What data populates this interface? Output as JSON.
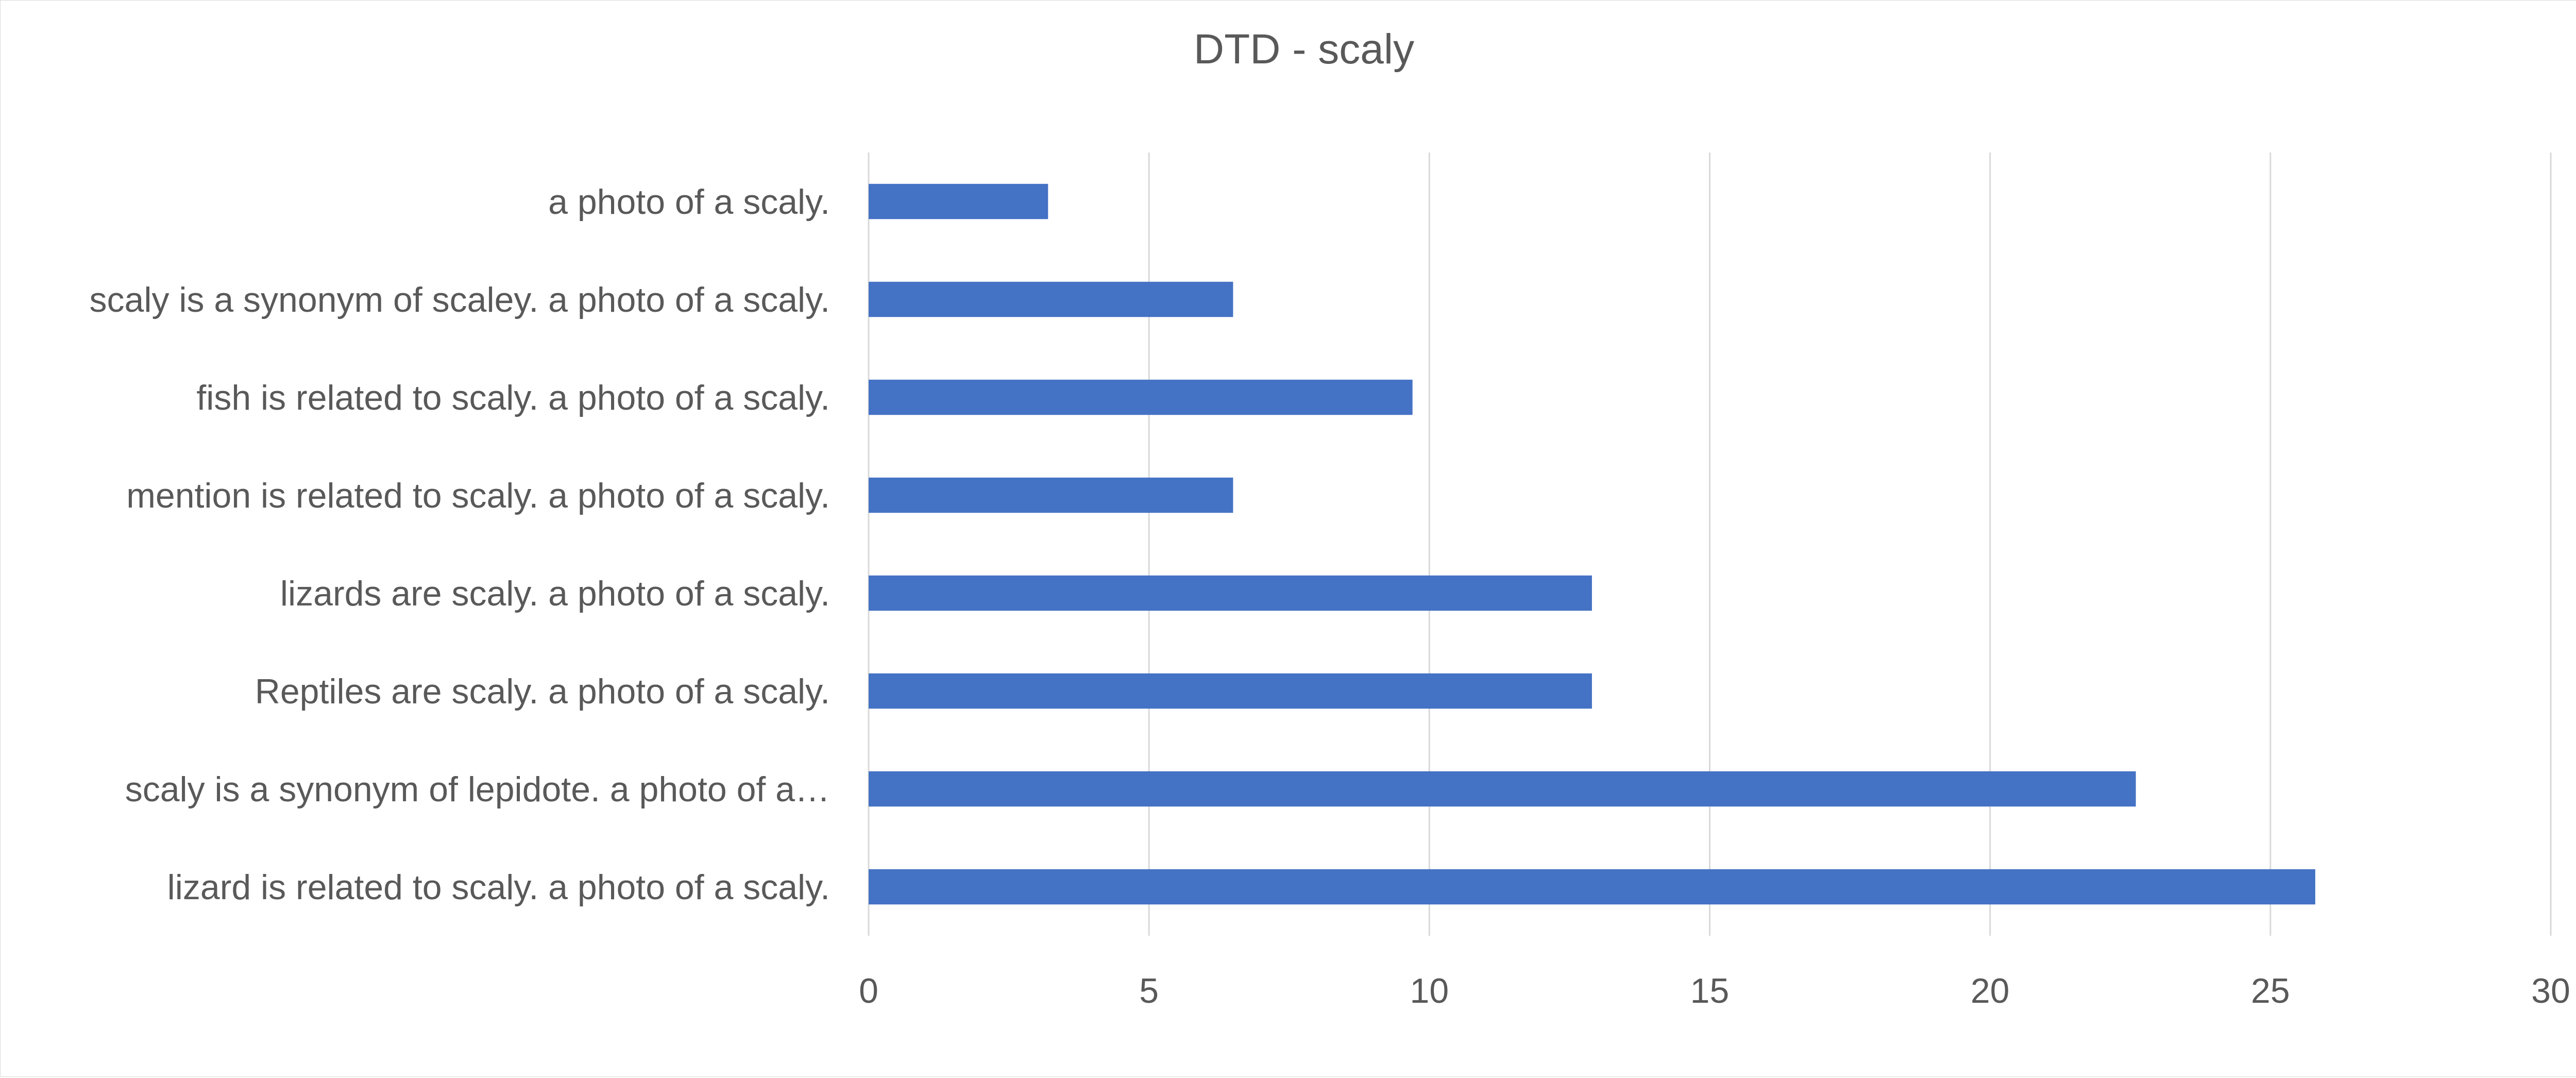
{
  "chart_data": {
    "type": "bar",
    "orientation": "horizontal",
    "title": "DTD - scaly",
    "categories": [
      "a photo of a scaly.",
      "scaly is a synonym of scaley. a photo of a scaly.",
      "fish is related to scaly. a photo of a scaly.",
      "mention is related to scaly. a photo of a scaly.",
      "lizards are scaly. a photo of a scaly.",
      "Reptiles are scaly. a photo of a scaly.",
      "scaly is a synonym of lepidote. a photo of a…",
      "lizard is related to scaly. a photo of a scaly."
    ],
    "values": [
      3.2,
      6.5,
      9.7,
      6.5,
      12.9,
      12.9,
      22.6,
      25.8
    ],
    "xlim": [
      0,
      30
    ],
    "xticks": [
      "0",
      "5",
      "10",
      "15",
      "20",
      "25",
      "30"
    ],
    "xlabel": "",
    "ylabel": "",
    "grid": true,
    "legend": "none",
    "bar_color": "#4472C4",
    "grid_color": "#d9d9d9",
    "text_color": "#595959"
  }
}
